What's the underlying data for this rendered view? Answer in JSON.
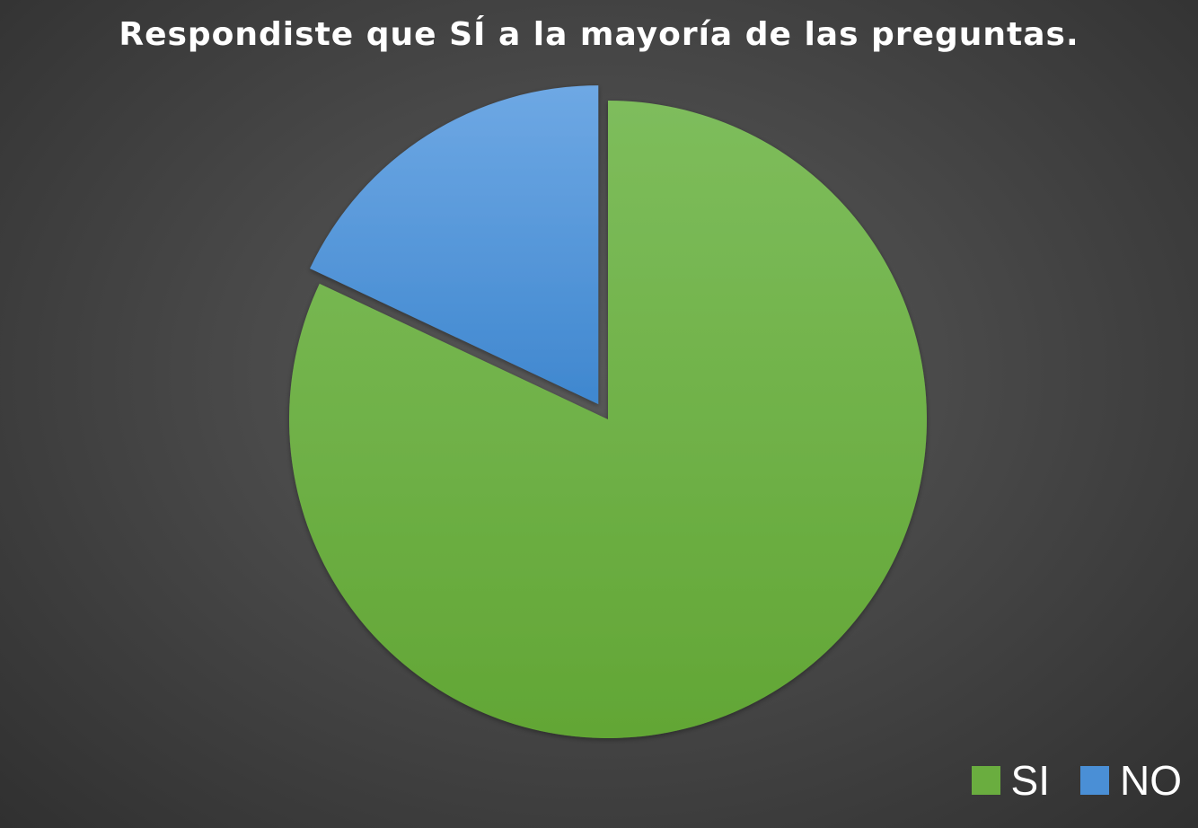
{
  "chart_data": {
    "type": "pie",
    "title": "Respondiste que SÍ a la mayoría de las preguntas.",
    "categories": [
      "SI",
      "NO"
    ],
    "values": [
      82,
      18
    ],
    "colors": [
      "#6aad3f",
      "#4a8fd6"
    ],
    "exploded": [
      "NO"
    ],
    "legend_position": "bottom-right"
  }
}
